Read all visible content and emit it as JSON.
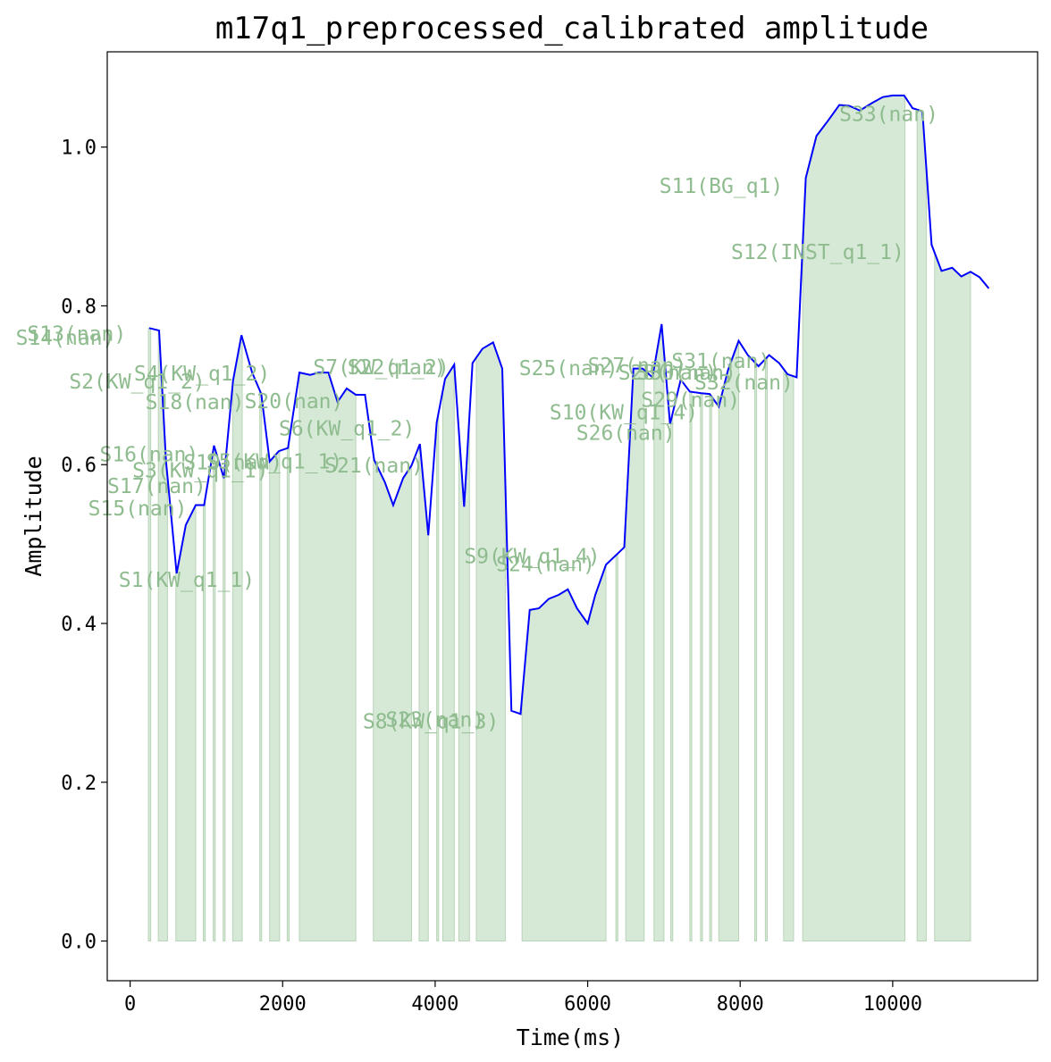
{
  "chart_data": {
    "type": "line",
    "title": "m17q1_preprocessed_calibrated amplitude",
    "xlabel": "Time(ms)",
    "ylabel": "Amplitude",
    "xlim": [
      -300,
      11900
    ],
    "ylim": [
      -0.05,
      1.12
    ],
    "xticks": [
      0,
      2000,
      4000,
      6000,
      8000,
      10000
    ],
    "yticks": [
      0.0,
      0.2,
      0.4,
      0.6,
      0.8,
      1.0
    ],
    "ytick_labels": [
      "0.0",
      "0.2",
      "0.4",
      "0.6",
      "0.8",
      "1.0"
    ],
    "colors": {
      "line": "#0000ff",
      "fill": "#d6e8d6",
      "fill_edge": "#b8d4b8",
      "label": "#8fbc8f"
    },
    "series": [
      {
        "x": [
          250,
          380,
          470,
          610,
          730,
          860,
          970,
          1100,
          1230,
          1350,
          1460,
          1600,
          1720,
          1830,
          1950,
          2070,
          2220,
          2360,
          2470,
          2600,
          2720,
          2840,
          2960,
          3080,
          3200,
          3340,
          3450,
          3580,
          3690,
          3800,
          3910,
          4020,
          4130,
          4250,
          4380,
          4490,
          4620,
          4760,
          4880,
          5000,
          5120,
          5240,
          5360,
          5490,
          5620,
          5740,
          5860,
          6000,
          6100,
          6240,
          6350,
          6480,
          6600,
          6720,
          6850,
          6970,
          7080,
          7220,
          7340,
          7490,
          7600,
          7720,
          7840,
          7980,
          8100,
          8240,
          8380,
          8510,
          8620,
          8740,
          8860,
          9000,
          9150,
          9300,
          9430,
          9570,
          9720,
          9870,
          10000,
          10150,
          10260,
          10390,
          10510,
          10640,
          10780,
          10900,
          11020,
          11140,
          11260
        ],
        "values": [
          0.772,
          0.769,
          0.605,
          0.463,
          0.524,
          0.549,
          0.549,
          0.624,
          0.583,
          0.706,
          0.763,
          0.716,
          0.689,
          0.604,
          0.617,
          0.621,
          0.716,
          0.713,
          0.716,
          0.716,
          0.679,
          0.696,
          0.688,
          0.688,
          0.606,
          0.578,
          0.549,
          0.583,
          0.599,
          0.626,
          0.511,
          0.653,
          0.708,
          0.726,
          0.547,
          0.728,
          0.746,
          0.754,
          0.721,
          0.29,
          0.286,
          0.417,
          0.419,
          0.431,
          0.436,
          0.443,
          0.419,
          0.4,
          0.436,
          0.474,
          0.484,
          0.496,
          0.721,
          0.721,
          0.71,
          0.777,
          0.651,
          0.707,
          0.692,
          0.69,
          0.689,
          0.673,
          0.719,
          0.756,
          0.738,
          0.724,
          0.738,
          0.728,
          0.714,
          0.71,
          0.961,
          1.014,
          1.033,
          1.053,
          1.052,
          1.046,
          1.055,
          1.063,
          1.065,
          1.065,
          1.049,
          1.045,
          0.877,
          0.844,
          0.848,
          0.837,
          0.843,
          0.836,
          0.822
        ]
      }
    ],
    "segments": [
      {
        "x0": 240,
        "x1": 270
      },
      {
        "x0": 370,
        "x1": 490
      },
      {
        "x0": 600,
        "x1": 860
      },
      {
        "x0": 960,
        "x1": 985
      },
      {
        "x0": 1090,
        "x1": 1115
      },
      {
        "x0": 1220,
        "x1": 1245
      },
      {
        "x0": 1345,
        "x1": 1470
      },
      {
        "x0": 1700,
        "x1": 1725
      },
      {
        "x0": 1830,
        "x1": 1960
      },
      {
        "x0": 2060,
        "x1": 2085
      },
      {
        "x0": 2220,
        "x1": 2960
      },
      {
        "x0": 3190,
        "x1": 3690
      },
      {
        "x0": 3790,
        "x1": 3910
      },
      {
        "x0": 4020,
        "x1": 4045
      },
      {
        "x0": 4100,
        "x1": 4250
      },
      {
        "x0": 4310,
        "x1": 4450
      },
      {
        "x0": 4540,
        "x1": 4920
      },
      {
        "x0": 5140,
        "x1": 6240
      },
      {
        "x0": 6370,
        "x1": 6395
      },
      {
        "x0": 6500,
        "x1": 6740
      },
      {
        "x0": 6870,
        "x1": 7000
      },
      {
        "x0": 7090,
        "x1": 7115
      },
      {
        "x0": 7340,
        "x1": 7365
      },
      {
        "x0": 7480,
        "x1": 7505
      },
      {
        "x0": 7600,
        "x1": 7625
      },
      {
        "x0": 7720,
        "x1": 7980
      },
      {
        "x0": 8190,
        "x1": 8215
      },
      {
        "x0": 8330,
        "x1": 8355
      },
      {
        "x0": 8570,
        "x1": 8700
      },
      {
        "x0": 8820,
        "x1": 10160
      },
      {
        "x0": 10320,
        "x1": 10440
      },
      {
        "x0": 10550,
        "x1": 11020
      }
    ],
    "annotations": [
      {
        "text": "S1(KW_q1_1)",
        "x": -150,
        "y": 0.446
      },
      {
        "text": "S2(KW_q1_2)",
        "x": -800,
        "y": 0.696
      },
      {
        "text": "S3(KW_q1_1)",
        "x": 30,
        "y": 0.584
      },
      {
        "text": "S4(KW_q1_2)",
        "x": 50,
        "y": 0.706
      },
      {
        "text": "S5(KW_q1_1)",
        "x": 1000,
        "y": 0.595
      },
      {
        "text": "S6(KW_q1_2)",
        "x": 1950,
        "y": 0.637
      },
      {
        "text": "S7(KW_q1_2)",
        "x": 2400,
        "y": 0.714
      },
      {
        "text": "S8(KW_q1_3)",
        "x": 3050,
        "y": 0.268
      },
      {
        "text": "S9(KW_q1_4)",
        "x": 4380,
        "y": 0.476
      },
      {
        "text": "S10(KW_q1_4)",
        "x": 5500,
        "y": 0.657
      },
      {
        "text": "S11(BG_q1)",
        "x": 6940,
        "y": 0.942
      },
      {
        "text": "S12(INST_q1_1)",
        "x": 7880,
        "y": 0.859
      },
      {
        "text": "S13(nan)",
        "x": -1350,
        "y": 0.756
      },
      {
        "text": "S14(nan)",
        "x": -1500,
        "y": 0.751
      },
      {
        "text": "S15(nan)",
        "x": -550,
        "y": 0.536
      },
      {
        "text": "S16(nan)",
        "x": -400,
        "y": 0.604
      },
      {
        "text": "S17(nan)",
        "x": -300,
        "y": 0.564
      },
      {
        "text": "S18(nan)",
        "x": 200,
        "y": 0.67
      },
      {
        "text": "S19(nan)",
        "x": 700,
        "y": 0.594
      },
      {
        "text": "S20(nan)",
        "x": 1500,
        "y": 0.671
      },
      {
        "text": "S21(nan)",
        "x": 2550,
        "y": 0.59
      },
      {
        "text": "S22(nan)",
        "x": 2850,
        "y": 0.714
      },
      {
        "text": "S23(nan)",
        "x": 3350,
        "y": 0.27
      },
      {
        "text": "S24(nan)",
        "x": 4800,
        "y": 0.466
      },
      {
        "text": "S25(nan)",
        "x": 5100,
        "y": 0.713
      },
      {
        "text": "S26(nan)",
        "x": 5850,
        "y": 0.631
      },
      {
        "text": "S27(nan)",
        "x": 6000,
        "y": 0.716
      },
      {
        "text": "S28(nan)",
        "x": 6400,
        "y": 0.707
      },
      {
        "text": "S29(nan)",
        "x": 6700,
        "y": 0.673
      },
      {
        "text": "S30(nan)",
        "x": 6650,
        "y": 0.707
      },
      {
        "text": "S31(nan)",
        "x": 7100,
        "y": 0.722
      },
      {
        "text": "S32(nan)",
        "x": 7400,
        "y": 0.695
      },
      {
        "text": "S33(nan)",
        "x": 9300,
        "y": 1.033
      }
    ]
  }
}
